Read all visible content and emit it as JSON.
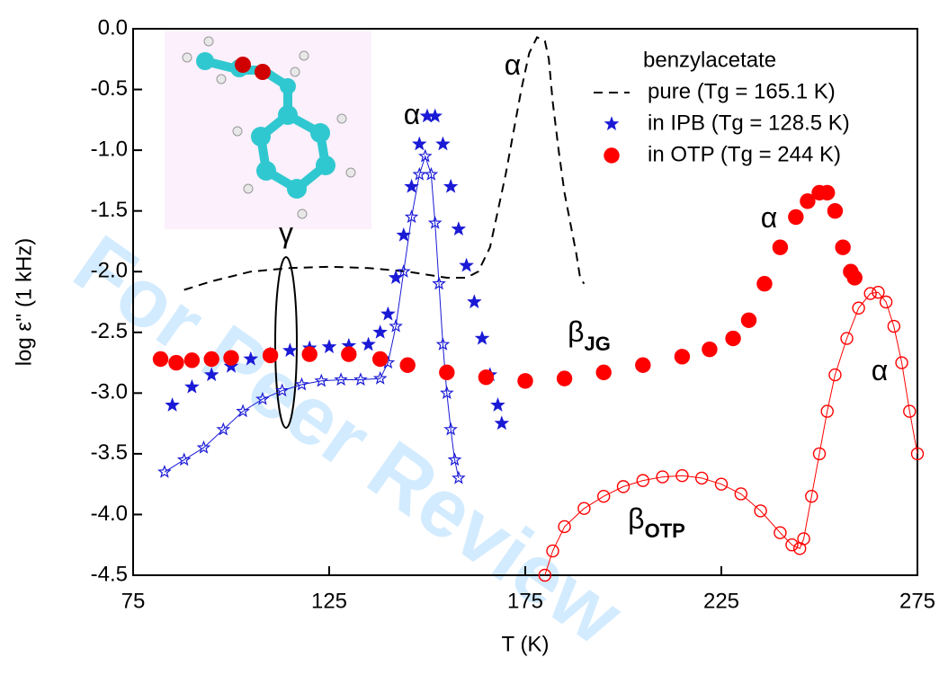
{
  "chart_data": {
    "type": "scatter",
    "x_label": "T (K)",
    "y_label": "log ε'' (1 kHz)",
    "xlim": [
      75,
      275
    ],
    "xticks": [
      75,
      125,
      175,
      225,
      275
    ],
    "ylim": [
      -4.5,
      0.0
    ],
    "yticks": [
      {
        "value": 0.0,
        "label": "0.0"
      },
      -0.5,
      {
        "value": -1.0,
        "label": "-1.0"
      },
      -1.5,
      {
        "value": -2.0,
        "label": "-2.0"
      },
      -2.5,
      {
        "value": -3.0,
        "label": "-3.0"
      },
      -3.5,
      {
        "value": -4.0,
        "label": "-4.0"
      },
      -4.5
    ],
    "legend_title": "benzylacetate",
    "legend_position": "upper right",
    "watermark": "For Peer Review",
    "annotations": [
      {
        "text": "α"
      },
      {
        "text": "α"
      },
      {
        "text": "α"
      },
      {
        "text": "α"
      },
      {
        "text": "γ"
      },
      {
        "text": "β",
        "sub": "JG"
      },
      {
        "text": "β",
        "sub": "OTP"
      }
    ],
    "series": [
      {
        "name": "pure (Tg = 165.1 K)",
        "color": "#000000",
        "marker": "none",
        "dash": true,
        "x": [
          88,
          95,
          105,
          115,
          125,
          135,
          145,
          155,
          160,
          163,
          166,
          168,
          170,
          172,
          174,
          176,
          178,
          180,
          181,
          182,
          183.5,
          185,
          186.5,
          188,
          189,
          190
        ],
        "values": [
          -2.15,
          -2.08,
          -2.0,
          -1.97,
          -1.96,
          -1.97,
          -2.0,
          -2.05,
          -2.05,
          -2.0,
          -1.8,
          -1.5,
          -1.2,
          -0.85,
          -0.5,
          -0.2,
          -0.07,
          -0.1,
          -0.25,
          -0.6,
          -1.0,
          -1.35,
          -1.6,
          -1.85,
          -2.05,
          -2.1
        ]
      },
      {
        "name": "in IPB (Tg = 128.5 K)",
        "color": "#1a1ad6",
        "marker": "star",
        "filled": true,
        "x": [
          85,
          90,
          95,
          100,
          105,
          110,
          115,
          120,
          125,
          130,
          135,
          138,
          140,
          142,
          144,
          146,
          148,
          150,
          152,
          154,
          156,
          158,
          160,
          162,
          164,
          166,
          168,
          169
        ],
        "values": [
          -3.1,
          -2.95,
          -2.85,
          -2.78,
          -2.72,
          -2.68,
          -2.65,
          -2.63,
          -2.62,
          -2.61,
          -2.6,
          -2.5,
          -2.35,
          -2.05,
          -1.7,
          -1.3,
          -0.95,
          -0.72,
          -0.72,
          -0.95,
          -1.3,
          -1.65,
          -1.95,
          -2.25,
          -2.55,
          -2.85,
          -3.1,
          -3.25
        ]
      },
      {
        "color": "#1a1ad6",
        "marker": "star",
        "filled": false,
        "x": [
          83,
          88,
          93,
          98,
          103,
          108,
          113,
          118,
          123,
          128,
          133,
          138,
          140,
          142,
          144,
          146,
          148,
          149.5,
          151,
          152,
          153,
          154,
          155,
          156,
          157,
          158
        ],
        "values": [
          -3.65,
          -3.55,
          -3.45,
          -3.3,
          -3.15,
          -3.05,
          -2.98,
          -2.93,
          -2.9,
          -2.89,
          -2.89,
          -2.88,
          -2.75,
          -2.45,
          -2.0,
          -1.55,
          -1.2,
          -1.05,
          -1.2,
          -1.6,
          -2.1,
          -2.6,
          -3.0,
          -3.3,
          -3.55,
          -3.7
        ]
      },
      {
        "name": "in OTP (Tg = 244 K)",
        "color": "#ff0000",
        "marker": "circle",
        "filled": true,
        "x": [
          82,
          86,
          90,
          95,
          100,
          110,
          120,
          130,
          138,
          145,
          155,
          165,
          175,
          185,
          195,
          205,
          215,
          222,
          228,
          232,
          236,
          240,
          244,
          247,
          250,
          252,
          254,
          256,
          258,
          259
        ],
        "values": [
          -2.72,
          -2.75,
          -2.73,
          -2.72,
          -2.71,
          -2.69,
          -2.68,
          -2.68,
          -2.72,
          -2.77,
          -2.83,
          -2.87,
          -2.9,
          -2.88,
          -2.83,
          -2.77,
          -2.7,
          -2.64,
          -2.55,
          -2.4,
          -2.1,
          -1.8,
          -1.55,
          -1.42,
          -1.35,
          -1.35,
          -1.5,
          -1.8,
          -2.0,
          -2.05
        ]
      },
      {
        "color": "#ff0000",
        "marker": "circle",
        "filled": false,
        "x": [
          180,
          182,
          185,
          190,
          195,
          200,
          205,
          210,
          215,
          220,
          225,
          230,
          235,
          240,
          243,
          245,
          246,
          248,
          250,
          252,
          254,
          257,
          260,
          263,
          265,
          267,
          269,
          271,
          273,
          275
        ],
        "values": [
          -4.5,
          -4.3,
          -4.1,
          -3.95,
          -3.85,
          -3.77,
          -3.72,
          -3.69,
          -3.68,
          -3.7,
          -3.75,
          -3.83,
          -3.97,
          -4.15,
          -4.25,
          -4.28,
          -4.2,
          -3.85,
          -3.5,
          -3.15,
          -2.85,
          -2.55,
          -2.3,
          -2.18,
          -2.17,
          -2.25,
          -2.45,
          -2.75,
          -3.15,
          -3.5
        ]
      }
    ]
  }
}
